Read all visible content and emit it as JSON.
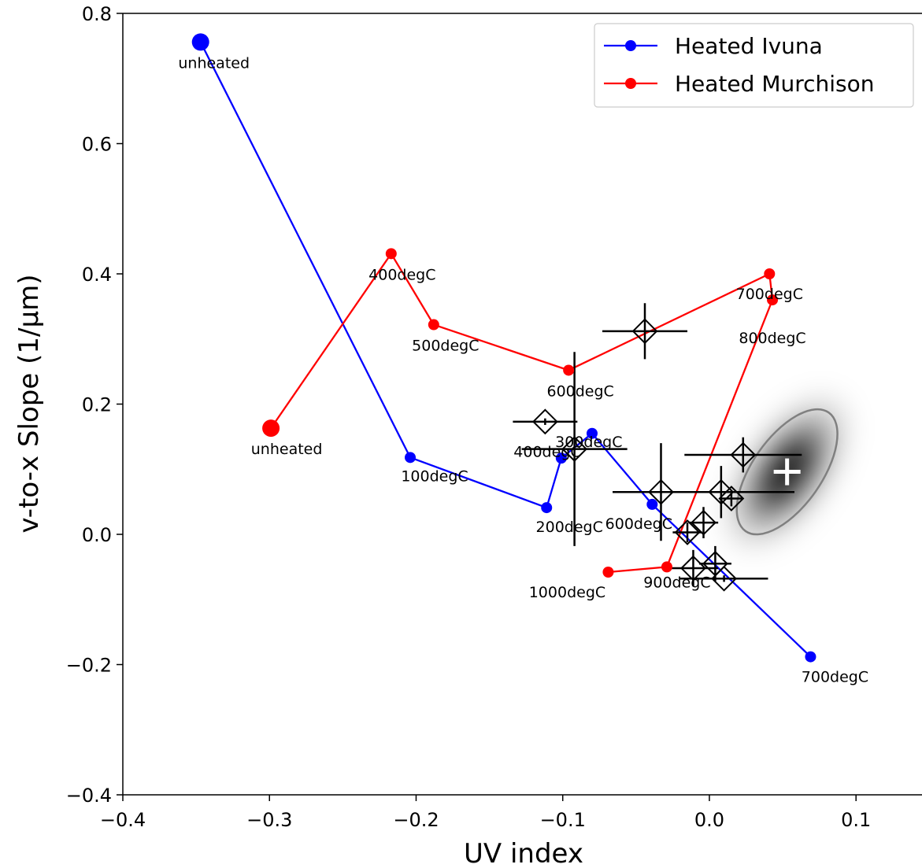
{
  "chart_data": {
    "type": "scatter",
    "xlabel": "UV index",
    "ylabel": "v-to-x Slope (1/µm)",
    "xlim": [
      -0.4,
      0.145
    ],
    "ylim": [
      -0.4,
      0.8
    ],
    "xticks": [
      -0.4,
      -0.3,
      -0.2,
      -0.1,
      0.0,
      0.1
    ],
    "xtick_labels": [
      "−0.4",
      "−0.3",
      "−0.2",
      "−0.1",
      "0.0",
      "0.1"
    ],
    "yticks": [
      -0.4,
      -0.2,
      0.0,
      0.2,
      0.4,
      0.6,
      0.8
    ],
    "ytick_labels": [
      "−0.4",
      "−0.2",
      "0.0",
      "0.2",
      "0.4",
      "0.6",
      "0.8"
    ],
    "legend_position": "top-right",
    "series": [
      {
        "name": "Heated Ivuna",
        "color": "#0000ff",
        "x": [
          -0.347,
          -0.204,
          -0.111,
          -0.101,
          -0.08,
          -0.039,
          0.069
        ],
        "y": [
          0.756,
          0.118,
          0.041,
          0.117,
          0.155,
          0.046,
          -0.188
        ],
        "labels": [
          "unheated",
          "100degC",
          "200degC",
          "300degC",
          "400degC",
          "600degC",
          "700degC"
        ]
      },
      {
        "name": "Heated Murchison",
        "color": "#ff0000",
        "x": [
          -0.299,
          -0.217,
          -0.188,
          -0.096,
          0.041,
          0.043,
          -0.029,
          -0.069
        ],
        "y": [
          0.163,
          0.431,
          0.322,
          0.252,
          0.4,
          0.36,
          -0.05,
          -0.058
        ],
        "labels": [
          "unheated",
          "400degC",
          "500degC",
          "600degC",
          "700degC",
          "800degC",
          "900degC",
          "1000degC"
        ]
      }
    ],
    "observations": {
      "marker": "open-diamond-with-errorbars",
      "color": "#000000",
      "points": [
        {
          "x": -0.044,
          "y": 0.312,
          "xerr": 0.029,
          "yerr": 0.043
        },
        {
          "x": -0.112,
          "y": 0.173,
          "xerr": 0.022,
          "yerr": 0.005
        },
        {
          "x": -0.092,
          "y": 0.131,
          "xerr": 0.036,
          "yerr": 0.149
        },
        {
          "x": -0.033,
          "y": 0.065,
          "xerr": 0.033,
          "yerr": 0.075
        },
        {
          "x": 0.023,
          "y": 0.122,
          "xerr": 0.04,
          "yerr": 0.027
        },
        {
          "x": 0.008,
          "y": 0.065,
          "xerr": 0.05,
          "yerr": 0.04
        },
        {
          "x": 0.015,
          "y": 0.055,
          "xerr": 0.008,
          "yerr": 0.012
        },
        {
          "x": -0.004,
          "y": 0.018,
          "xerr": 0.01,
          "yerr": 0.024
        },
        {
          "x": -0.015,
          "y": 0.003,
          "xerr": 0.01,
          "yerr": 0.015
        },
        {
          "x": -0.011,
          "y": -0.052,
          "xerr": 0.017,
          "yerr": 0.028
        },
        {
          "x": 0.004,
          "y": -0.045,
          "xerr": 0.011,
          "yerr": 0.027
        },
        {
          "x": 0.01,
          "y": -0.068,
          "xerr": 0.03,
          "yerr": 0.005
        }
      ]
    },
    "posterior": {
      "center": {
        "x": 0.053,
        "y": 0.096
      },
      "marker": "white-plus-on-gray-density-with-contour"
    }
  }
}
